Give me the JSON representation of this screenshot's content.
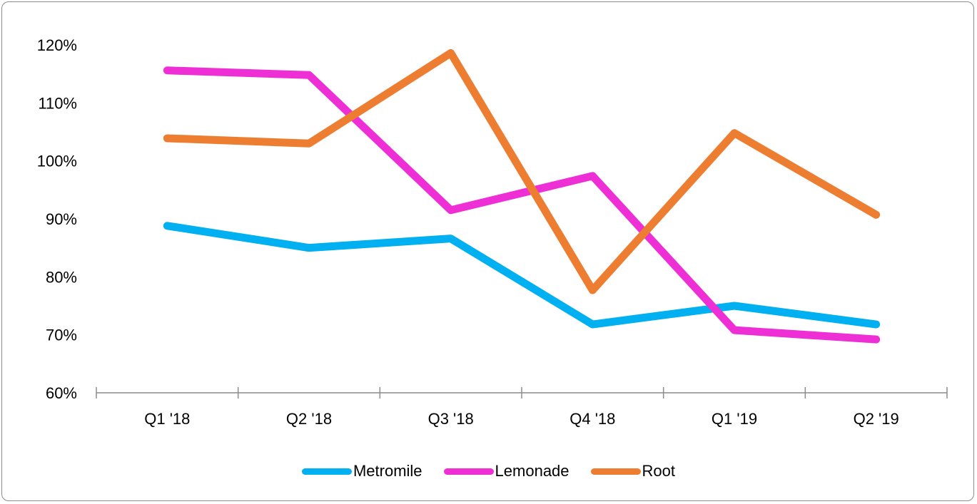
{
  "chart_data": {
    "type": "line",
    "title": "",
    "xlabel": "",
    "ylabel": "",
    "categories": [
      "Q1 '18",
      "Q2 '18",
      "Q3 '18",
      "Q4 '18",
      "Q1 '19",
      "Q2 '19"
    ],
    "ylim": [
      60,
      120
    ],
    "yticks": [
      60,
      70,
      80,
      90,
      100,
      110,
      120
    ],
    "ytick_labels": [
      "60%",
      "70%",
      "80%",
      "90%",
      "100%",
      "110%",
      "120%"
    ],
    "grid": false,
    "legend_position": "bottom",
    "series": [
      {
        "name": "Metromile",
        "color": "#00B0F0",
        "values": [
          88.8,
          85.0,
          86.6,
          71.8,
          75.0,
          71.8
        ]
      },
      {
        "name": "Lemonade",
        "color": "#EE2FD6",
        "values": [
          115.6,
          114.8,
          91.5,
          97.4,
          70.8,
          69.2
        ]
      },
      {
        "name": "Root",
        "color": "#ED7D31",
        "values": [
          103.9,
          103.0,
          118.6,
          77.7,
          104.8,
          90.7
        ]
      }
    ]
  }
}
